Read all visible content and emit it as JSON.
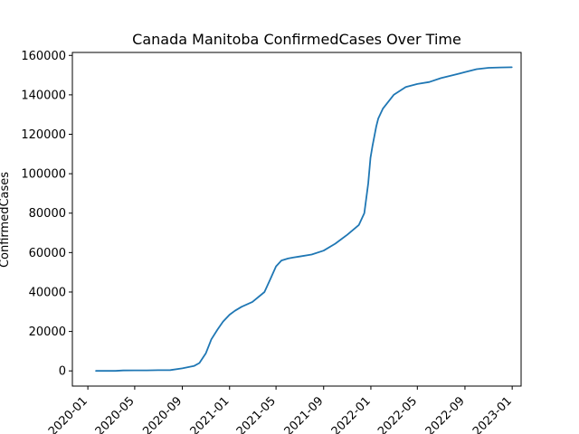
{
  "chart_data": {
    "type": "line",
    "title": "Canada Manitoba ConfirmedCases Over Time",
    "xlabel": "",
    "ylabel": "ConfirmedCases",
    "x_ticks": [
      "2020-01",
      "2020-05",
      "2020-09",
      "2021-01",
      "2021-05",
      "2021-09",
      "2022-01",
      "2022-05",
      "2022-09",
      "2023-01"
    ],
    "y_ticks": [
      "0",
      "20000",
      "40000",
      "60000",
      "80000",
      "100000",
      "120000",
      "140000",
      "160000"
    ],
    "ylim": [
      -7700,
      161500
    ],
    "xlim": [
      "2019-11-22",
      "2023-01-24"
    ],
    "grid": false,
    "series": [
      {
        "color": "#1f77b4",
        "x": [
          "2020-01-22",
          "2020-03-12",
          "2020-04-01",
          "2020-05-01",
          "2020-06-01",
          "2020-07-01",
          "2020-08-01",
          "2020-09-01",
          "2020-10-01",
          "2020-10-15",
          "2020-11-01",
          "2020-11-15",
          "2020-12-01",
          "2020-12-15",
          "2021-01-01",
          "2021-01-15",
          "2021-02-01",
          "2021-03-01",
          "2021-04-01",
          "2021-04-15",
          "2021-05-01",
          "2021-05-15",
          "2021-06-01",
          "2021-06-15",
          "2021-07-01",
          "2021-08-01",
          "2021-09-01",
          "2021-10-01",
          "2021-11-01",
          "2021-12-01",
          "2021-12-15",
          "2021-12-25",
          "2021-12-31",
          "2022-01-05",
          "2022-01-10",
          "2022-01-15",
          "2022-01-20",
          "2022-02-01",
          "2022-03-01",
          "2022-04-01",
          "2022-05-01",
          "2022-06-01",
          "2022-07-01",
          "2022-08-01",
          "2022-09-01",
          "2022-10-01",
          "2022-11-01",
          "2022-12-01",
          "2022-12-31"
        ],
        "y": [
          0,
          0,
          250,
          300,
          300,
          350,
          400,
          1300,
          2500,
          4000,
          9000,
          16000,
          21000,
          25000,
          28500,
          30500,
          32500,
          35000,
          40000,
          46000,
          53000,
          56000,
          57000,
          57500,
          58000,
          59000,
          61000,
          64500,
          69000,
          74000,
          80000,
          95000,
          108000,
          114000,
          119000,
          124000,
          128000,
          133000,
          140000,
          144000,
          145500,
          146500,
          148500,
          150000,
          151500,
          153000,
          153700,
          153900,
          154000
        ]
      }
    ]
  }
}
